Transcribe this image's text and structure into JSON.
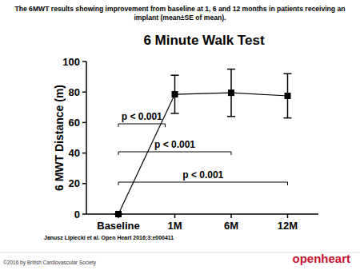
{
  "caption": "The 6MWT results showing improvement from baseline at 1, 6 and 12 months in patients receiving an implant (mean±SE of mean).",
  "source": "Janusz Lipiecki et al. Open Heart 2016;3:e000411",
  "copyright": "©2016 by British Cardiovascular Society",
  "logo": "openheart",
  "chart_data": {
    "type": "line",
    "title": "6 Minute Walk Test",
    "y_label": "6 MWT Distance (m)",
    "categories": [
      "Baseline",
      "1M",
      "6M",
      "12M"
    ],
    "values": [
      0,
      78.5,
      79.5,
      77.5
    ],
    "errors": [
      0,
      12.5,
      15.5,
      14.5
    ],
    "color": "#000000",
    "marker": "square",
    "ylim": [
      0,
      100
    ],
    "yticks": [
      0,
      20,
      40,
      60,
      80,
      100
    ],
    "significance": [
      {
        "from": "Baseline",
        "to": "1M",
        "label": "p < 0.001"
      },
      {
        "from": "Baseline",
        "to": "6M",
        "label": "p < 0.001"
      },
      {
        "from": "Baseline",
        "to": "12M",
        "label": "p < 0.001"
      }
    ]
  }
}
